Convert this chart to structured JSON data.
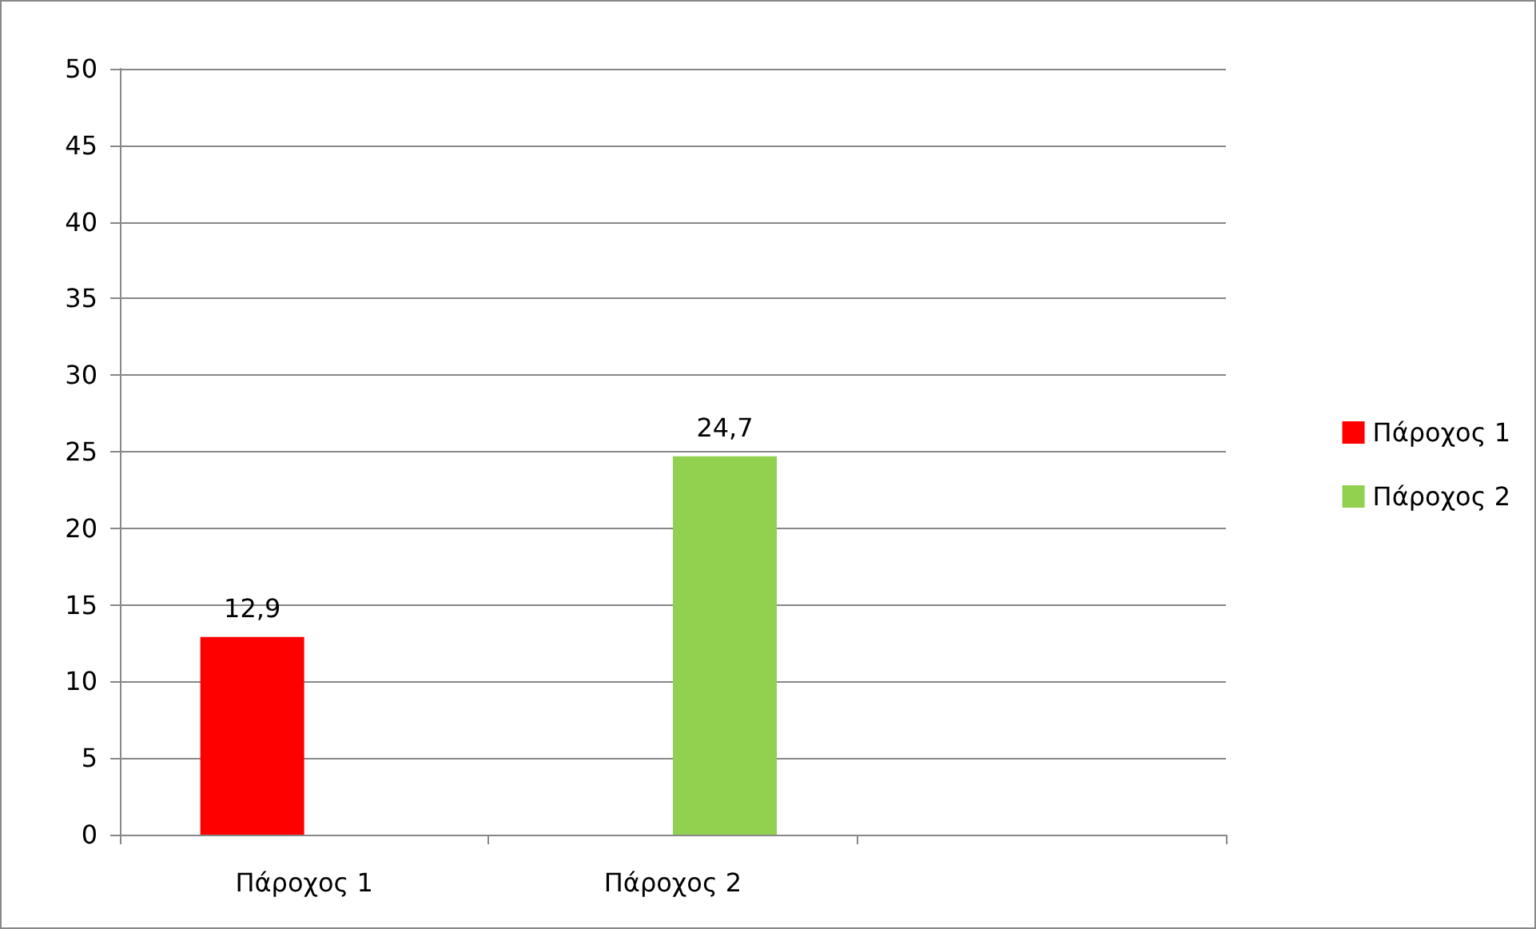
{
  "chart_data": {
    "type": "bar",
    "categories": [
      "Πάροχος 1",
      "Πάροχος 2",
      null
    ],
    "series": [
      {
        "name": "Πάροχος 1",
        "color": "#ff0000",
        "values": [
          12.9,
          null,
          null
        ],
        "value_labels": [
          "12,9",
          null,
          null
        ]
      },
      {
        "name": "Πάροχος 2",
        "color": "#92d050",
        "values": [
          null,
          24.7,
          null
        ],
        "value_labels": [
          null,
          "24,7",
          null
        ]
      }
    ],
    "ylim": [
      0,
      50
    ],
    "yticks": [
      0,
      5,
      10,
      15,
      20,
      25,
      30,
      35,
      40,
      45,
      50
    ],
    "grid": "y",
    "legend": "right"
  }
}
